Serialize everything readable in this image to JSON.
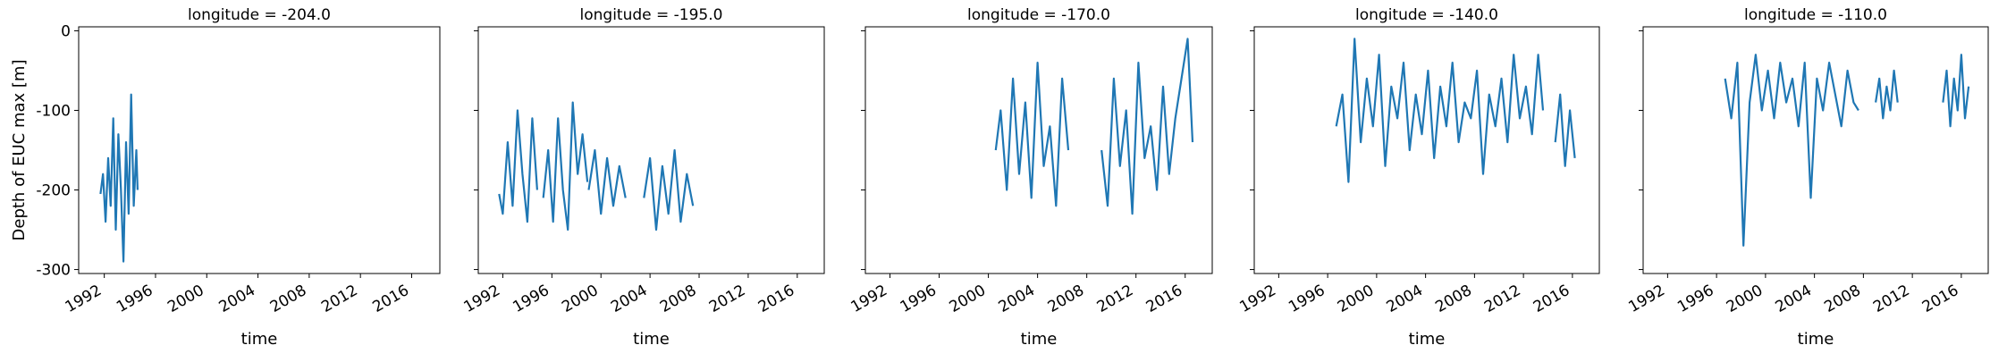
{
  "figure": {
    "ylabel": "Depth of EUC max [m]",
    "xlabel": "time",
    "line_color": "#1f77b4",
    "xlim": [
      1990.0,
      2018.2
    ],
    "ylim": [
      -305,
      5
    ],
    "x_ticks": [
      1992,
      1996,
      2000,
      2004,
      2008,
      2012,
      2016
    ],
    "y_ticks": [
      0,
      -100,
      -200,
      -300
    ]
  },
  "chart_data": [
    {
      "type": "line",
      "title": "longitude = -204.0",
      "xlabel": "time",
      "ylabel": "Depth of EUC max [m]",
      "x_unit": "year",
      "segments": [
        {
          "x": [
            1991.7,
            1991.9,
            1992.1,
            1992.3,
            1992.5,
            1992.7,
            1992.9,
            1993.1,
            1993.3,
            1993.5,
            1993.7,
            1993.9,
            1994.1,
            1994.3,
            1994.5,
            1994.6
          ],
          "y": [
            -205,
            -180,
            -240,
            -160,
            -220,
            -110,
            -250,
            -130,
            -200,
            -290,
            -140,
            -230,
            -80,
            -220,
            -150,
            -200
          ]
        }
      ]
    },
    {
      "type": "line",
      "title": "longitude = -195.0",
      "xlabel": "time",
      "ylabel": "",
      "x_unit": "year",
      "segments": [
        {
          "x": [
            1991.7,
            1992.0,
            1992.4,
            1992.8,
            1993.2,
            1993.6,
            1994.0,
            1994.4,
            1994.8
          ],
          "y": [
            -205,
            -230,
            -140,
            -220,
            -100,
            -180,
            -240,
            -110,
            -200
          ]
        },
        {
          "x": [
            1995.3,
            1995.7,
            1996.1,
            1996.5,
            1996.9,
            1997.3,
            1997.7,
            1998.1,
            1998.5,
            1998.9
          ],
          "y": [
            -210,
            -150,
            -240,
            -110,
            -200,
            -250,
            -90,
            -180,
            -130,
            -190
          ]
        },
        {
          "x": [
            1999.0,
            1999.5,
            2000.0,
            2000.5,
            2001.0,
            2001.5,
            2002.0
          ],
          "y": [
            -200,
            -150,
            -230,
            -160,
            -220,
            -170,
            -210
          ]
        },
        {
          "x": [
            2003.5,
            2004.0,
            2004.5,
            2005.0,
            2005.5,
            2006.0,
            2006.5,
            2007.0,
            2007.5
          ],
          "y": [
            -210,
            -160,
            -250,
            -170,
            -230,
            -150,
            -240,
            -180,
            -220
          ]
        }
      ]
    },
    {
      "type": "line",
      "title": "longitude = -170.0",
      "xlabel": "time",
      "ylabel": "",
      "x_unit": "year",
      "segments": [
        {
          "x": [
            2000.6,
            2001.0,
            2001.5,
            2002.0,
            2002.5,
            2003.0,
            2003.5,
            2004.0,
            2004.5,
            2005.0,
            2005.5,
            2006.0,
            2006.5
          ],
          "y": [
            -150,
            -100,
            -200,
            -60,
            -180,
            -90,
            -210,
            -40,
            -170,
            -120,
            -220,
            -60,
            -150
          ]
        },
        {
          "x": [
            2009.2,
            2009.7,
            2010.2,
            2010.7,
            2011.2,
            2011.7,
            2012.2,
            2012.7,
            2013.2,
            2013.7,
            2014.2,
            2014.7,
            2015.2,
            2015.7,
            2016.2,
            2016.6
          ],
          "y": [
            -150,
            -220,
            -60,
            -170,
            -100,
            -230,
            -40,
            -160,
            -120,
            -200,
            -70,
            -180,
            -110,
            -60,
            -10,
            -140
          ]
        }
      ]
    },
    {
      "type": "line",
      "title": "longitude = -140.0",
      "xlabel": "time",
      "ylabel": "",
      "x_unit": "year",
      "segments": [
        {
          "x": [
            1996.7,
            1997.2,
            1997.7,
            1998.2,
            1998.7,
            1999.2,
            1999.7,
            2000.2,
            2000.7,
            2001.2,
            2001.7,
            2002.2,
            2002.7,
            2003.2,
            2003.7,
            2004.2,
            2004.7,
            2005.2,
            2005.7,
            2006.2,
            2006.7,
            2007.2,
            2007.7,
            2008.2,
            2008.7,
            2009.2,
            2009.7,
            2010.2,
            2010.7,
            2011.2,
            2011.7,
            2012.2,
            2012.7,
            2013.2,
            2013.6
          ],
          "y": [
            -120,
            -80,
            -190,
            -10,
            -140,
            -60,
            -120,
            -30,
            -170,
            -70,
            -110,
            -40,
            -150,
            -80,
            -130,
            -50,
            -160,
            -70,
            -120,
            -40,
            -140,
            -90,
            -110,
            -50,
            -180,
            -80,
            -120,
            -60,
            -140,
            -30,
            -110,
            -70,
            -130,
            -30,
            -100
          ]
        },
        {
          "x": [
            2014.6,
            2015.0,
            2015.4,
            2015.8,
            2016.2
          ],
          "y": [
            -140,
            -80,
            -170,
            -100,
            -160
          ]
        }
      ]
    },
    {
      "type": "line",
      "title": "longitude = -110.0",
      "xlabel": "time",
      "ylabel": "",
      "x_unit": "year",
      "segments": [
        {
          "x": [
            1996.7,
            1997.2,
            1997.7,
            1998.2,
            1998.7,
            1999.2,
            1999.7,
            2000.2,
            2000.7,
            2001.2,
            2001.7,
            2002.2,
            2002.7,
            2003.2,
            2003.7,
            2004.2,
            2004.7,
            2005.2,
            2005.7,
            2006.2,
            2006.7,
            2007.2,
            2007.6
          ],
          "y": [
            -60,
            -110,
            -40,
            -270,
            -90,
            -30,
            -100,
            -50,
            -110,
            -40,
            -90,
            -60,
            -120,
            -40,
            -210,
            -60,
            -100,
            -40,
            -80,
            -120,
            -50,
            -90,
            -100
          ]
        },
        {
          "x": [
            2009.0,
            2009.3,
            2009.6,
            2009.9,
            2010.2,
            2010.5,
            2010.8
          ],
          "y": [
            -90,
            -60,
            -110,
            -70,
            -100,
            -50,
            -90
          ]
        },
        {
          "x": [
            2014.5,
            2014.8,
            2015.1,
            2015.4,
            2015.7,
            2016.0,
            2016.3,
            2016.6
          ],
          "y": [
            -90,
            -50,
            -120,
            -60,
            -100,
            -30,
            -110,
            -70
          ]
        }
      ]
    }
  ]
}
